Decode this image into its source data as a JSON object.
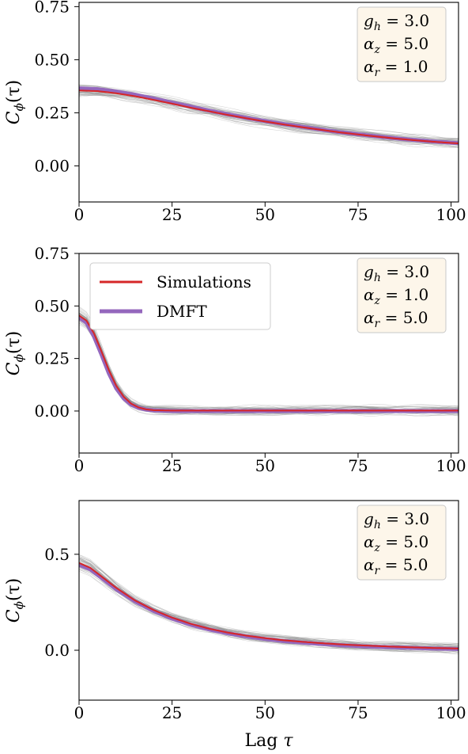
{
  "figure": {
    "xlabel": "Lag τ"
  },
  "chart_data": [
    {
      "type": "line",
      "ylabel": "Cϕ(τ)",
      "xlim": [
        0,
        102
      ],
      "ylim": [
        -0.17,
        0.77
      ],
      "xticks": [
        "0",
        "25",
        "50",
        "75",
        "100"
      ],
      "yticks": [
        "0.00",
        "0.25",
        "0.50",
        "0.75"
      ],
      "ytick_values": [
        0.0,
        0.25,
        0.5,
        0.75
      ],
      "params": [
        "g_h = 3.0",
        "α_z = 5.0",
        "α_r = 1.0"
      ],
      "x": [
        0,
        5,
        10,
        15,
        20,
        25,
        30,
        35,
        40,
        45,
        50,
        55,
        60,
        65,
        70,
        75,
        80,
        85,
        90,
        95,
        100,
        102
      ],
      "series": [
        {
          "values": [
            0.355,
            0.352,
            0.342,
            0.328,
            0.311,
            0.293,
            0.274,
            0.257,
            0.24,
            0.224,
            0.209,
            0.195,
            0.182,
            0.17,
            0.158,
            0.148,
            0.138,
            0.129,
            0.121,
            0.114,
            0.108,
            0.106
          ],
          "color": "#d62728"
        },
        {
          "values": [
            0.365,
            0.361,
            0.35,
            0.335,
            0.317,
            0.298,
            0.279,
            0.26,
            0.243,
            0.226,
            0.211,
            0.197,
            0.184,
            0.171,
            0.159,
            0.149,
            0.139,
            0.13,
            0.122,
            0.115,
            0.109,
            0.107
          ],
          "color": "#9467bd"
        }
      ],
      "legend": false
    },
    {
      "type": "line",
      "ylabel": "Cϕ(τ)",
      "xlim": [
        0,
        102
      ],
      "ylim": [
        -0.2,
        0.75
      ],
      "xticks": [
        "0",
        "25",
        "50",
        "75",
        "100"
      ],
      "yticks": [
        "0.00",
        "0.25",
        "0.50",
        "0.75"
      ],
      "ytick_values": [
        0.0,
        0.25,
        0.5,
        0.75
      ],
      "params": [
        "g_h = 3.0",
        "α_z = 1.0",
        "α_r = 5.0"
      ],
      "x": [
        0,
        2,
        4,
        6,
        8,
        10,
        12,
        14,
        16,
        18,
        20,
        25,
        30,
        40,
        50,
        60,
        70,
        80,
        90,
        100,
        102
      ],
      "series": [
        {
          "name": "Simulations",
          "values": [
            0.455,
            0.43,
            0.37,
            0.285,
            0.195,
            0.12,
            0.068,
            0.035,
            0.017,
            0.008,
            0.004,
            0.002,
            0.002,
            0.002,
            0.002,
            0.002,
            0.002,
            0.002,
            0.002,
            0.002,
            0.002
          ],
          "color": "#d62728"
        },
        {
          "name": "DMFT",
          "values": [
            0.445,
            0.42,
            0.355,
            0.27,
            0.18,
            0.108,
            0.06,
            0.03,
            0.015,
            0.007,
            0.003,
            0.0,
            0.0,
            0.0,
            0.0,
            0.0,
            0.0,
            0.0,
            0.0,
            0.0,
            0.0
          ],
          "color": "#9467bd"
        }
      ],
      "legend": true,
      "legend_position": "top-left"
    },
    {
      "type": "line",
      "ylabel": "Cϕ(τ)",
      "xlim": [
        0,
        102
      ],
      "ylim": [
        -0.26,
        0.78
      ],
      "xticks": [
        "0",
        "25",
        "50",
        "75",
        "100"
      ],
      "yticks": [
        "0.0",
        "0.5"
      ],
      "ytick_values": [
        0.0,
        0.5
      ],
      "params": [
        "g_h = 3.0",
        "α_z = 5.0",
        "α_r = 5.0"
      ],
      "x": [
        0,
        3,
        6,
        10,
        15,
        20,
        25,
        30,
        35,
        40,
        45,
        50,
        55,
        60,
        65,
        70,
        75,
        80,
        85,
        90,
        95,
        100,
        102
      ],
      "series": [
        {
          "values": [
            0.455,
            0.43,
            0.385,
            0.325,
            0.26,
            0.21,
            0.17,
            0.138,
            0.112,
            0.092,
            0.076,
            0.063,
            0.052,
            0.044,
            0.037,
            0.031,
            0.026,
            0.022,
            0.018,
            0.015,
            0.012,
            0.01,
            0.009
          ],
          "color": "#d62728"
        },
        {
          "values": [
            0.445,
            0.422,
            0.378,
            0.318,
            0.255,
            0.205,
            0.165,
            0.133,
            0.108,
            0.088,
            0.072,
            0.059,
            0.048,
            0.04,
            0.033,
            0.027,
            0.022,
            0.018,
            0.015,
            0.012,
            0.009,
            0.007,
            0.006
          ],
          "color": "#9467bd"
        }
      ],
      "legend": false
    }
  ],
  "styles": {
    "grey_trace_color": "#8c8c8c",
    "param_box_fill": "#fdf6ea",
    "param_box_stroke": "#c8c8c8",
    "legend_fill": "#ffffff",
    "legend_stroke": "#cccccc"
  }
}
